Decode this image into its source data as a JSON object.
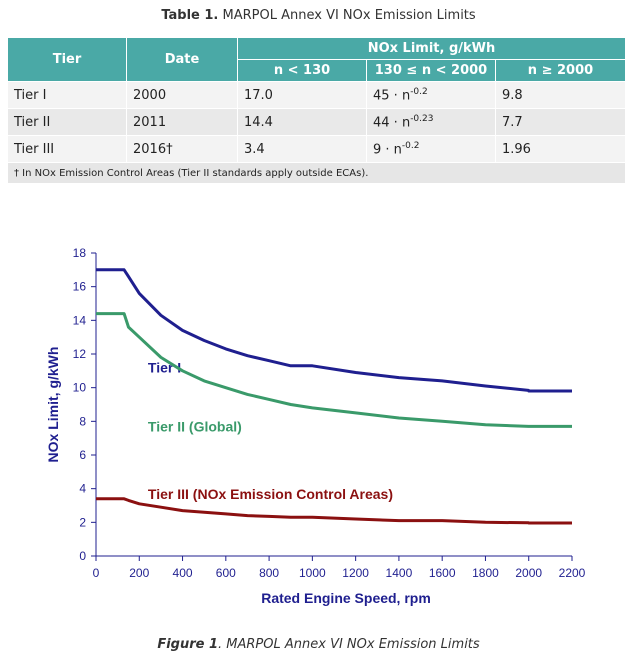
{
  "table": {
    "caption_bold": "Table 1.",
    "caption_text": " MARPOL Annex VI NOx Emission Limits",
    "header": {
      "tier": "Tier",
      "date": "Date",
      "nox": "NOx Limit, g/kWh",
      "n_low": "n < 130",
      "n_mid": "130 ≤ n < 2000",
      "n_high": "n ≥ 2000"
    },
    "rows": [
      {
        "tier": "Tier I",
        "date": "2000",
        "low": "17.0",
        "mid_coef": "45 · n",
        "mid_exp": "-0.2",
        "high": "9.8"
      },
      {
        "tier": "Tier II",
        "date": "2011",
        "low": "14.4",
        "mid_coef": "44 · n",
        "mid_exp": "-0.23",
        "high": "7.7"
      },
      {
        "tier": "Tier III",
        "date": "2016†",
        "low": "3.4",
        "mid_coef": "9 · n",
        "mid_exp": "-0.2",
        "high": "1.96"
      }
    ],
    "footnote": "† In NOx Emission Control Areas (Tier II standards apply outside ECAs)."
  },
  "figure": {
    "caption_bold": "Figure 1",
    "caption_text": ". MARPOL Annex VI NOx Emission Limits"
  },
  "colors": {
    "header_bg": "#4aa9a6",
    "tier1": "#1f1f8f",
    "tier2": "#3a9a6a",
    "tier3": "#8b1010",
    "axis_text": "#1f1f8f"
  },
  "chart_data": {
    "type": "line",
    "xlabel": "Rated Engine Speed, rpm",
    "ylabel": "NOx Limit, g/kWh",
    "xlim": [
      0,
      2200
    ],
    "ylim": [
      0,
      18
    ],
    "xticks": [
      "0",
      "200",
      "400",
      "600",
      "800",
      "1000",
      "1200",
      "1400",
      "1600",
      "1800",
      "2000",
      "2200"
    ],
    "yticks": [
      "0",
      "2",
      "4",
      "6",
      "8",
      "10",
      "12",
      "14",
      "16",
      "18"
    ],
    "grid": false,
    "series": [
      {
        "name": "Tier I",
        "color": "#1f1f8f",
        "x": [
          0,
          130,
          150,
          200,
          300,
          400,
          500,
          600,
          700,
          800,
          900,
          1000,
          1200,
          1400,
          1600,
          1800,
          1999,
          2000,
          2200
        ],
        "y": [
          17.0,
          17.0,
          16.6,
          15.6,
          14.3,
          13.4,
          12.8,
          12.3,
          11.9,
          11.6,
          11.3,
          11.3,
          10.9,
          10.6,
          10.4,
          10.1,
          9.84,
          9.8,
          9.8
        ]
      },
      {
        "name": "Tier II (Global)",
        "color": "#3a9a6a",
        "x": [
          0,
          130,
          150,
          200,
          300,
          400,
          500,
          600,
          700,
          800,
          900,
          1000,
          1200,
          1400,
          1600,
          1800,
          1999,
          2000,
          2200
        ],
        "y": [
          14.4,
          14.4,
          13.6,
          13.0,
          11.8,
          11.0,
          10.4,
          10.0,
          9.6,
          9.3,
          9.0,
          8.8,
          8.5,
          8.2,
          8.0,
          7.8,
          7.7,
          7.7,
          7.7
        ]
      },
      {
        "name": "Tier III (NOx Emission Control Areas)",
        "color": "#8b1010",
        "x": [
          0,
          130,
          150,
          200,
          300,
          400,
          500,
          600,
          700,
          800,
          900,
          1000,
          1200,
          1400,
          1600,
          1800,
          1999,
          2000,
          2200
        ],
        "y": [
          3.4,
          3.4,
          3.3,
          3.1,
          2.9,
          2.7,
          2.6,
          2.5,
          2.4,
          2.35,
          2.3,
          2.3,
          2.2,
          2.1,
          2.1,
          2.0,
          1.97,
          1.96,
          1.96
        ]
      }
    ]
  }
}
